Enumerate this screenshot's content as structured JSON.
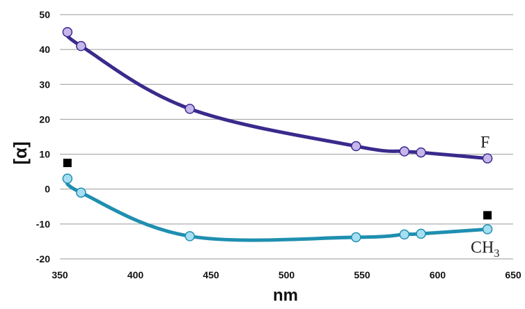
{
  "chart_data": {
    "type": "line",
    "title": "",
    "xlabel": "nm",
    "ylabel": "[α]",
    "xlim": [
      350,
      650
    ],
    "ylim": [
      -20,
      50
    ],
    "x_ticks": [
      "350",
      "400",
      "450",
      "500",
      "550",
      "600",
      "650"
    ],
    "y_ticks": [
      "50",
      "40",
      "30",
      "20",
      "10",
      "0",
      "-10",
      "-20"
    ],
    "grid": "horizontal",
    "legend": "none",
    "series": [
      {
        "name": "F",
        "color": "#3a2a8c",
        "marker_color": "#c7b6ec",
        "x": [
          355,
          364,
          436,
          546,
          578,
          589,
          633
        ],
        "y": [
          45,
          41,
          23,
          12.3,
          10.8,
          10.5,
          8.8
        ]
      },
      {
        "name": "CH3",
        "label_main": "CH",
        "label_sub": "3",
        "color": "#1f8fb0",
        "marker_color": "#a6def2",
        "x": [
          355,
          364,
          436,
          546,
          578,
          589,
          633
        ],
        "y": [
          3,
          -1,
          -13.5,
          -13.8,
          -13,
          -12.8,
          -11.5
        ]
      }
    ],
    "extra_points": {
      "marker": "square",
      "color": "#000000",
      "x": [
        355,
        633
      ],
      "y": [
        7.5,
        -7.5
      ]
    }
  }
}
